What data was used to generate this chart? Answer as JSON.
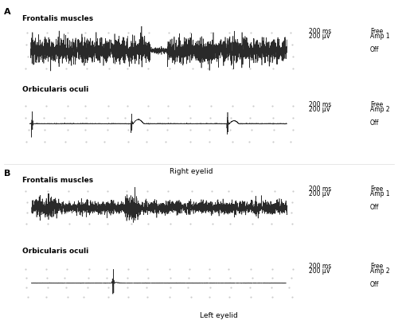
{
  "title_A": "A",
  "title_B": "B",
  "label_frontalis": "Frontalis muscles",
  "label_orbicularis": "Orbicularis oculi",
  "label_right": "Right eyelid",
  "label_left": "Left eyelid",
  "scale_ms": "200 ms",
  "scale_uV": "200 μV",
  "label_free": "Free",
  "label_amp1": "Amp 1",
  "label_amp2": "Amp 2",
  "label_off": "Off",
  "bg_color": "#ffffff",
  "signal_color": "#2a2a2a",
  "dot_color": "#bbbbbb",
  "fontsize_label": 6.5,
  "fontsize_annotation": 5.5,
  "fontsize_title": 8,
  "fontsize_eyelid": 6.5
}
